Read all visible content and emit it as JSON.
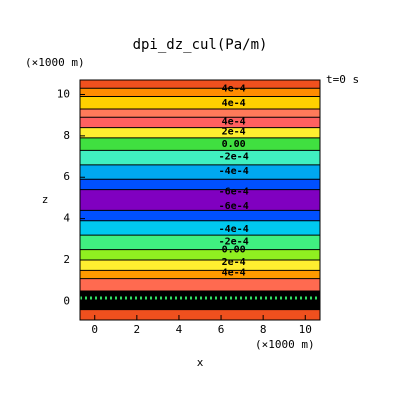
{
  "chart_data": {
    "type": "contour",
    "title": "dpi_dz_cul(Pa/m)",
    "x_label": "x",
    "y_label": "z",
    "x_unit": "(×1000 m)",
    "y_unit": "(×1000 m)",
    "time_label": "t=0 s",
    "xlim": [
      -0.7,
      10.7
    ],
    "ylim": [
      -0.9,
      10.7
    ],
    "xticks": [
      0,
      2,
      4,
      6,
      8,
      10
    ],
    "yticks": [
      0,
      2,
      4,
      6,
      8,
      10
    ],
    "bands": [
      {
        "z": [
          10.3,
          10.7
        ],
        "color": "#f0501e"
      },
      {
        "z": [
          9.9,
          10.3
        ],
        "color": "#ff8c00"
      },
      {
        "z": [
          9.3,
          9.9
        ],
        "color": "#ffd000"
      },
      {
        "z": [
          8.9,
          9.3
        ],
        "color": "#ff7a5a"
      },
      {
        "z": [
          8.4,
          8.9
        ],
        "color": "#ff6060"
      },
      {
        "z": [
          7.9,
          8.4
        ],
        "color": "#ffee30"
      },
      {
        "z": [
          7.3,
          7.9
        ],
        "color": "#40e040"
      },
      {
        "z": [
          6.6,
          7.3
        ],
        "color": "#40f0c0"
      },
      {
        "z": [
          5.9,
          6.6
        ],
        "color": "#00a8f0"
      },
      {
        "z": [
          5.4,
          5.9
        ],
        "color": "#0050ff"
      },
      {
        "z": [
          4.4,
          5.4
        ],
        "color": "#8000c0"
      },
      {
        "z": [
          3.9,
          4.4
        ],
        "color": "#0050ff"
      },
      {
        "z": [
          3.2,
          3.9
        ],
        "color": "#00c8f0"
      },
      {
        "z": [
          2.5,
          3.2
        ],
        "color": "#40f080"
      },
      {
        "z": [
          2.0,
          2.5
        ],
        "color": "#90f020"
      },
      {
        "z": [
          1.5,
          2.0
        ],
        "color": "#ffee30"
      },
      {
        "z": [
          1.1,
          1.5
        ],
        "color": "#ff9a00"
      },
      {
        "z": [
          0.5,
          1.1
        ],
        "color": "#ff6a50"
      },
      {
        "z": [
          -0.4,
          0.5
        ],
        "color": "#000000"
      },
      {
        "z": [
          -0.9,
          -0.4
        ],
        "color": "#f0501e"
      }
    ],
    "contour_labels": [
      {
        "text": "4e-4",
        "z": 10.3
      },
      {
        "text": "4e-4",
        "z": 9.6
      },
      {
        "text": "4e-4",
        "z": 8.7
      },
      {
        "text": "2e-4",
        "z": 8.2
      },
      {
        "text": "0.00",
        "z": 7.6
      },
      {
        "text": "-2e-4",
        "z": 7.0
      },
      {
        "text": "-4e-4",
        "z": 6.3
      },
      {
        "text": "-6e-4",
        "z": 5.3
      },
      {
        "text": "-6e-4",
        "z": 4.6
      },
      {
        "text": "-4e-4",
        "z": 3.5
      },
      {
        "text": "-2e-4",
        "z": 2.9
      },
      {
        "text": "0.00",
        "z": 2.5
      },
      {
        "text": "2e-4",
        "z": 1.9
      },
      {
        "text": "4e-4",
        "z": 1.4
      }
    ]
  }
}
